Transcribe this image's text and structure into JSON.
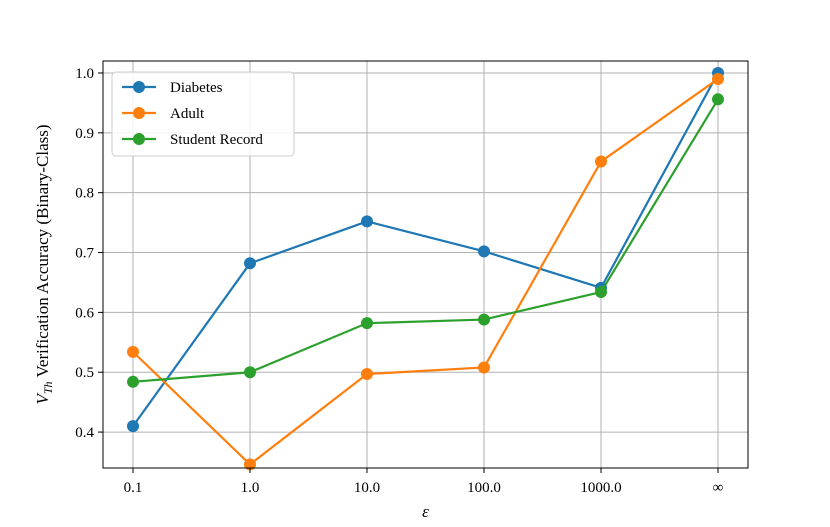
{
  "chart_data": {
    "type": "line",
    "categories": [
      "0.1",
      "1.0",
      "10.0",
      "100.0",
      "1000.0",
      "∞"
    ],
    "series": [
      {
        "name": "Diabetes",
        "color": "#1f77b4",
        "values": [
          0.41,
          0.682,
          0.752,
          0.702,
          0.641,
          1.0
        ]
      },
      {
        "name": "Adult",
        "color": "#ff7f0e",
        "values": [
          0.534,
          0.346,
          0.497,
          0.508,
          0.852,
          0.99
        ]
      },
      {
        "name": "Student Record",
        "color": "#2ca02c",
        "values": [
          0.484,
          0.5,
          0.582,
          0.588,
          0.634,
          0.956
        ]
      }
    ],
    "xlabel": "ε",
    "ylabel_main": "V",
    "ylabel_sub": "Th",
    "ylabel_rest": " Verification Accuracy (Binary-Class)",
    "ylim": [
      0.34,
      1.02
    ],
    "yticks": [
      0.4,
      0.5,
      0.6,
      0.7,
      0.8,
      0.9,
      1.0
    ],
    "ytick_labels": [
      "0.4",
      "0.5",
      "0.6",
      "0.7",
      "0.8",
      "0.9",
      "1.0"
    ],
    "grid": true,
    "legend_position": "top-left"
  }
}
